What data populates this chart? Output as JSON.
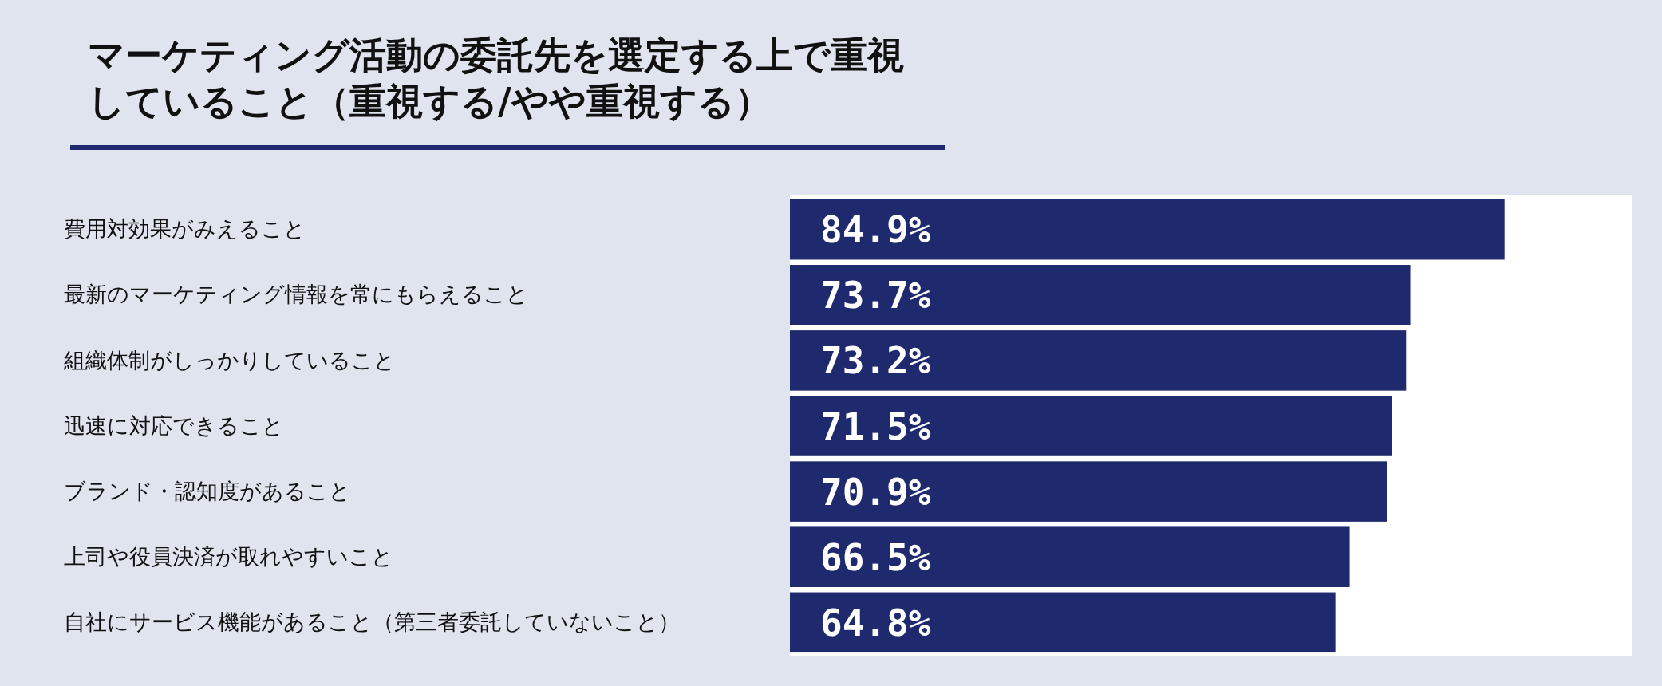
{
  "chart_data": {
    "type": "bar",
    "orientation": "horizontal",
    "title": "マーケティング活動の委託先を選定する上で重視していること（重視する/やや重視する）",
    "categories": [
      "費用対効果がみえること",
      "最新のマーケティング情報を常にもらえること",
      "組織体制がしっかりしていること",
      "迅速に対応できること",
      "ブランド・認知度があること",
      "上司や役員決済が取れやすいこと",
      "自社にサービス機能があること（第三者委託していないこと）"
    ],
    "values": [
      84.9,
      73.7,
      73.2,
      71.5,
      70.9,
      66.5,
      64.8
    ],
    "value_labels": [
      "84.9%",
      "73.7%",
      "73.2%",
      "71.5%",
      "70.9%",
      "66.5%",
      "64.8%"
    ],
    "color": "#1f2a6e",
    "xlim": [
      0,
      100
    ],
    "tick_labels": "y"
  }
}
